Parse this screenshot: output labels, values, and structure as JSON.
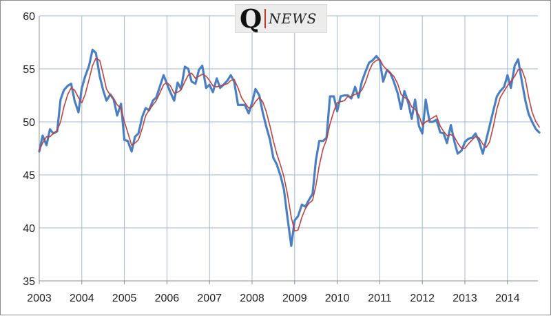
{
  "chart_data": {
    "type": "line",
    "title": "",
    "xlabel": "",
    "ylabel": "",
    "ylim": [
      35,
      60
    ],
    "yticks": [
      35,
      40,
      45,
      50,
      55,
      60
    ],
    "xlim": [
      2003,
      2014.75
    ],
    "xticks": [
      "2003",
      "2004",
      "2005",
      "2006",
      "2007",
      "2008",
      "2009",
      "2010",
      "2011",
      "2012",
      "2013",
      "2014"
    ],
    "grid": true,
    "legend": "none",
    "series": [
      {
        "color": "#4a7fc1",
        "points": [
          [
            2003.0,
            47.2
          ],
          [
            2003.08,
            48.7
          ],
          [
            2003.17,
            47.8
          ],
          [
            2003.25,
            49.3
          ],
          [
            2003.33,
            48.9
          ],
          [
            2003.42,
            49.1
          ],
          [
            2003.5,
            52.1
          ],
          [
            2003.58,
            53.0
          ],
          [
            2003.67,
            53.4
          ],
          [
            2003.75,
            53.6
          ],
          [
            2003.83,
            52.0
          ],
          [
            2003.92,
            50.9
          ],
          [
            2004.0,
            53.2
          ],
          [
            2004.08,
            54.3
          ],
          [
            2004.17,
            55.3
          ],
          [
            2004.25,
            56.8
          ],
          [
            2004.33,
            56.5
          ],
          [
            2004.42,
            54.3
          ],
          [
            2004.5,
            53.0
          ],
          [
            2004.58,
            52.0
          ],
          [
            2004.67,
            52.6
          ],
          [
            2004.75,
            52.1
          ],
          [
            2004.83,
            50.6
          ],
          [
            2004.92,
            51.7
          ],
          [
            2005.0,
            48.3
          ],
          [
            2005.08,
            48.2
          ],
          [
            2005.17,
            47.2
          ],
          [
            2005.25,
            48.6
          ],
          [
            2005.33,
            48.9
          ],
          [
            2005.42,
            50.5
          ],
          [
            2005.5,
            51.3
          ],
          [
            2005.58,
            51.1
          ],
          [
            2005.67,
            52.0
          ],
          [
            2005.75,
            52.3
          ],
          [
            2005.83,
            53.3
          ],
          [
            2005.92,
            54.4
          ],
          [
            2006.0,
            53.6
          ],
          [
            2006.08,
            52.8
          ],
          [
            2006.17,
            52.0
          ],
          [
            2006.25,
            53.7
          ],
          [
            2006.33,
            53.1
          ],
          [
            2006.42,
            55.2
          ],
          [
            2006.5,
            55.0
          ],
          [
            2006.58,
            53.8
          ],
          [
            2006.67,
            53.6
          ],
          [
            2006.75,
            54.9
          ],
          [
            2006.83,
            55.3
          ],
          [
            2006.92,
            53.2
          ],
          [
            2007.0,
            53.5
          ],
          [
            2007.08,
            52.8
          ],
          [
            2007.17,
            54.1
          ],
          [
            2007.25,
            53.2
          ],
          [
            2007.33,
            53.5
          ],
          [
            2007.42,
            53.9
          ],
          [
            2007.5,
            54.4
          ],
          [
            2007.58,
            53.8
          ],
          [
            2007.67,
            51.6
          ],
          [
            2007.75,
            51.6
          ],
          [
            2007.83,
            51.6
          ],
          [
            2007.92,
            50.8
          ],
          [
            2008.0,
            51.8
          ],
          [
            2008.08,
            53.1
          ],
          [
            2008.17,
            52.5
          ],
          [
            2008.25,
            50.9
          ],
          [
            2008.33,
            49.6
          ],
          [
            2008.42,
            48.3
          ],
          [
            2008.5,
            46.6
          ],
          [
            2008.58,
            46.0
          ],
          [
            2008.67,
            44.9
          ],
          [
            2008.75,
            43.6
          ],
          [
            2008.83,
            41.0
          ],
          [
            2008.92,
            38.3
          ],
          [
            2009.0,
            40.7
          ],
          [
            2009.08,
            41.1
          ],
          [
            2009.17,
            42.2
          ],
          [
            2009.25,
            42.0
          ],
          [
            2009.33,
            42.6
          ],
          [
            2009.42,
            43.2
          ],
          [
            2009.5,
            46.4
          ],
          [
            2009.58,
            48.2
          ],
          [
            2009.67,
            48.2
          ],
          [
            2009.75,
            48.5
          ],
          [
            2009.83,
            52.4
          ],
          [
            2009.92,
            52.4
          ],
          [
            2010.0,
            51.0
          ],
          [
            2010.08,
            52.4
          ],
          [
            2010.17,
            52.5
          ],
          [
            2010.25,
            52.5
          ],
          [
            2010.33,
            52.2
          ],
          [
            2010.42,
            53.3
          ],
          [
            2010.5,
            52.3
          ],
          [
            2010.58,
            53.8
          ],
          [
            2010.67,
            54.8
          ],
          [
            2010.75,
            55.6
          ],
          [
            2010.83,
            55.8
          ],
          [
            2010.92,
            56.2
          ],
          [
            2011.0,
            55.8
          ],
          [
            2011.08,
            53.8
          ],
          [
            2011.17,
            54.9
          ],
          [
            2011.25,
            54.6
          ],
          [
            2011.33,
            53.8
          ],
          [
            2011.42,
            52.7
          ],
          [
            2011.5,
            51.2
          ],
          [
            2011.58,
            52.9
          ],
          [
            2011.67,
            51.8
          ],
          [
            2011.75,
            50.3
          ],
          [
            2011.83,
            52.1
          ],
          [
            2011.92,
            49.6
          ],
          [
            2012.0,
            48.9
          ],
          [
            2012.08,
            52.1
          ],
          [
            2012.17,
            50.0
          ],
          [
            2012.25,
            50.0
          ],
          [
            2012.33,
            50.2
          ],
          [
            2012.42,
            49.0
          ],
          [
            2012.5,
            48.9
          ],
          [
            2012.58,
            48.0
          ],
          [
            2012.67,
            49.7
          ],
          [
            2012.75,
            48.2
          ],
          [
            2012.83,
            47.0
          ],
          [
            2012.92,
            47.3
          ],
          [
            2013.0,
            48.1
          ],
          [
            2013.08,
            48.4
          ],
          [
            2013.17,
            48.5
          ],
          [
            2013.25,
            48.9
          ],
          [
            2013.33,
            48.2
          ],
          [
            2013.42,
            47.0
          ],
          [
            2013.5,
            48.3
          ],
          [
            2013.58,
            49.6
          ],
          [
            2013.67,
            51.1
          ],
          [
            2013.75,
            52.4
          ],
          [
            2013.83,
            52.9
          ],
          [
            2013.92,
            53.3
          ],
          [
            2014.0,
            54.4
          ],
          [
            2014.08,
            53.2
          ],
          [
            2014.17,
            55.3
          ],
          [
            2014.25,
            55.9
          ],
          [
            2014.33,
            54.0
          ],
          [
            2014.42,
            52.0
          ],
          [
            2014.5,
            50.7
          ],
          [
            2014.58,
            50.0
          ],
          [
            2014.67,
            49.3
          ],
          [
            2014.75,
            49.0
          ]
        ]
      },
      {
        "color": "#c0403f",
        "points": [
          [
            2003.0,
            47.3
          ],
          [
            2003.08,
            48.0
          ],
          [
            2003.17,
            48.6
          ],
          [
            2003.25,
            48.6
          ],
          [
            2003.33,
            48.9
          ],
          [
            2003.42,
            49.2
          ],
          [
            2003.5,
            50.0
          ],
          [
            2003.58,
            51.4
          ],
          [
            2003.67,
            52.6
          ],
          [
            2003.75,
            53.2
          ],
          [
            2003.83,
            53.0
          ],
          [
            2003.92,
            52.3
          ],
          [
            2004.0,
            51.8
          ],
          [
            2004.08,
            52.6
          ],
          [
            2004.17,
            54.0
          ],
          [
            2004.25,
            55.3
          ],
          [
            2004.33,
            56.0
          ],
          [
            2004.42,
            55.8
          ],
          [
            2004.5,
            54.5
          ],
          [
            2004.58,
            53.1
          ],
          [
            2004.67,
            52.5
          ],
          [
            2004.75,
            52.2
          ],
          [
            2004.83,
            51.6
          ],
          [
            2004.92,
            51.3
          ],
          [
            2005.0,
            50.0
          ],
          [
            2005.08,
            49.0
          ],
          [
            2005.17,
            47.8
          ],
          [
            2005.25,
            48.0
          ],
          [
            2005.33,
            48.3
          ],
          [
            2005.42,
            49.4
          ],
          [
            2005.5,
            50.6
          ],
          [
            2005.58,
            51.1
          ],
          [
            2005.67,
            51.6
          ],
          [
            2005.75,
            52.0
          ],
          [
            2005.83,
            52.7
          ],
          [
            2005.92,
            53.5
          ],
          [
            2006.0,
            53.7
          ],
          [
            2006.08,
            53.4
          ],
          [
            2006.17,
            52.7
          ],
          [
            2006.25,
            52.8
          ],
          [
            2006.33,
            53.0
          ],
          [
            2006.42,
            53.8
          ],
          [
            2006.5,
            54.4
          ],
          [
            2006.58,
            54.6
          ],
          [
            2006.67,
            54.1
          ],
          [
            2006.75,
            54.3
          ],
          [
            2006.83,
            54.5
          ],
          [
            2006.92,
            54.3
          ],
          [
            2007.0,
            53.9
          ],
          [
            2007.08,
            53.4
          ],
          [
            2007.17,
            53.3
          ],
          [
            2007.25,
            53.4
          ],
          [
            2007.33,
            53.5
          ],
          [
            2007.42,
            53.6
          ],
          [
            2007.5,
            53.9
          ],
          [
            2007.58,
            54.0
          ],
          [
            2007.67,
            53.2
          ],
          [
            2007.75,
            52.3
          ],
          [
            2007.83,
            51.8
          ],
          [
            2007.92,
            51.3
          ],
          [
            2008.0,
            51.4
          ],
          [
            2008.08,
            51.9
          ],
          [
            2008.17,
            52.3
          ],
          [
            2008.25,
            51.9
          ],
          [
            2008.33,
            51.0
          ],
          [
            2008.42,
            49.6
          ],
          [
            2008.5,
            48.2
          ],
          [
            2008.58,
            47.0
          ],
          [
            2008.67,
            45.9
          ],
          [
            2008.75,
            44.8
          ],
          [
            2008.83,
            43.2
          ],
          [
            2008.92,
            41.0
          ],
          [
            2009.0,
            39.7
          ],
          [
            2009.08,
            39.8
          ],
          [
            2009.17,
            41.0
          ],
          [
            2009.25,
            41.8
          ],
          [
            2009.33,
            42.3
          ],
          [
            2009.42,
            42.6
          ],
          [
            2009.5,
            44.0
          ],
          [
            2009.58,
            45.9
          ],
          [
            2009.67,
            47.5
          ],
          [
            2009.75,
            48.3
          ],
          [
            2009.83,
            49.8
          ],
          [
            2009.92,
            51.0
          ],
          [
            2010.0,
            51.8
          ],
          [
            2010.08,
            51.9
          ],
          [
            2010.17,
            52.0
          ],
          [
            2010.25,
            52.4
          ],
          [
            2010.33,
            52.4
          ],
          [
            2010.42,
            52.6
          ],
          [
            2010.5,
            52.7
          ],
          [
            2010.58,
            53.0
          ],
          [
            2010.67,
            53.8
          ],
          [
            2010.75,
            54.8
          ],
          [
            2010.83,
            55.5
          ],
          [
            2010.92,
            55.8
          ],
          [
            2011.0,
            55.9
          ],
          [
            2011.08,
            55.3
          ],
          [
            2011.17,
            54.9
          ],
          [
            2011.25,
            54.6
          ],
          [
            2011.33,
            54.3
          ],
          [
            2011.42,
            53.6
          ],
          [
            2011.5,
            52.6
          ],
          [
            2011.58,
            52.3
          ],
          [
            2011.67,
            52.1
          ],
          [
            2011.75,
            51.4
          ],
          [
            2011.83,
            51.2
          ],
          [
            2011.92,
            50.6
          ],
          [
            2012.0,
            49.7
          ],
          [
            2012.08,
            50.0
          ],
          [
            2012.17,
            50.2
          ],
          [
            2012.25,
            50.4
          ],
          [
            2012.33,
            50.6
          ],
          [
            2012.42,
            49.6
          ],
          [
            2012.5,
            49.1
          ],
          [
            2012.58,
            48.7
          ],
          [
            2012.67,
            48.8
          ],
          [
            2012.75,
            48.6
          ],
          [
            2012.83,
            48.0
          ],
          [
            2012.92,
            47.5
          ],
          [
            2013.0,
            47.5
          ],
          [
            2013.08,
            47.9
          ],
          [
            2013.17,
            48.3
          ],
          [
            2013.25,
            48.6
          ],
          [
            2013.33,
            48.5
          ],
          [
            2013.42,
            47.9
          ],
          [
            2013.5,
            47.6
          ],
          [
            2013.58,
            48.1
          ],
          [
            2013.67,
            49.6
          ],
          [
            2013.75,
            51.2
          ],
          [
            2013.83,
            52.3
          ],
          [
            2013.92,
            52.9
          ],
          [
            2014.0,
            53.4
          ],
          [
            2014.08,
            53.8
          ],
          [
            2014.17,
            54.3
          ],
          [
            2014.25,
            54.9
          ],
          [
            2014.33,
            55.0
          ],
          [
            2014.42,
            54.0
          ],
          [
            2014.5,
            52.3
          ],
          [
            2014.58,
            50.9
          ],
          [
            2014.67,
            50.0
          ],
          [
            2014.75,
            49.5
          ]
        ]
      }
    ]
  },
  "logo": {
    "letter": "Q",
    "word": "NEWS"
  }
}
